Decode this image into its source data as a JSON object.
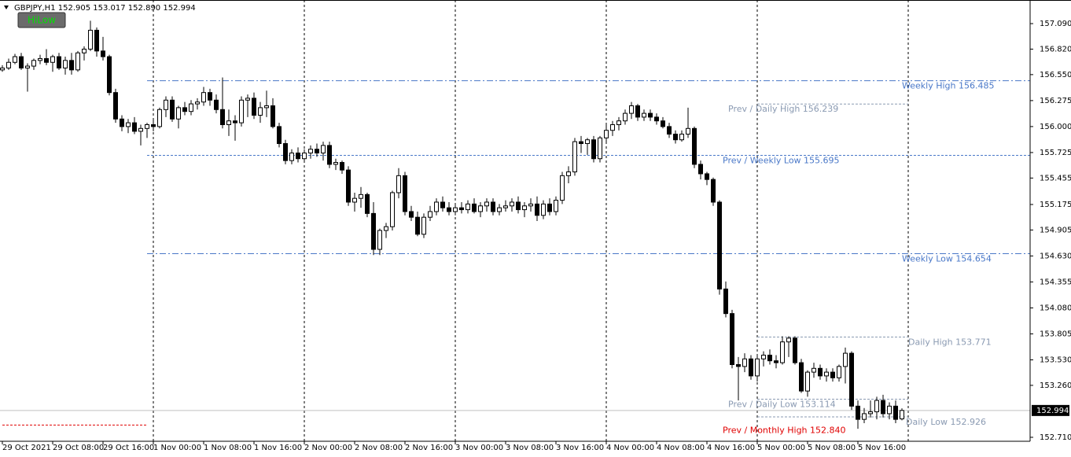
{
  "chart_data": {
    "type": "candlestick",
    "title": "GBPJPY,H1  152.905 153.017 152.890 152.994",
    "button": "HiLow",
    "categories": [
      "29 Oct 2021",
      null,
      null,
      null,
      null,
      null,
      null,
      null,
      "29 Oct 08:00",
      null,
      null,
      null,
      null,
      null,
      null,
      null,
      "29 Oct 16:00",
      null,
      null,
      null,
      null,
      null,
      null,
      null,
      "1 Nov 00:00",
      null,
      null,
      null,
      null,
      null,
      null,
      null,
      "1 Nov 08:00",
      null,
      null,
      null,
      null,
      null,
      null,
      null,
      "1 Nov 16:00",
      null,
      null,
      null,
      null,
      null,
      null,
      null,
      "2 Nov 00:00",
      null,
      null,
      null,
      null,
      null,
      null,
      null,
      "2 Nov 08:00",
      null,
      null,
      null,
      null,
      null,
      null,
      null,
      "2 Nov 16:00",
      null,
      null,
      null,
      null,
      null,
      null,
      null,
      "3 Nov 00:00",
      null,
      null,
      null,
      null,
      null,
      null,
      null,
      "3 Nov 08:00",
      null,
      null,
      null,
      null,
      null,
      null,
      null,
      "3 Nov 16:00",
      null,
      null,
      null,
      null,
      null,
      null,
      null,
      "4 Nov 00:00",
      null,
      null,
      null,
      null,
      null,
      null,
      null,
      "4 Nov 08:00",
      null,
      null,
      null,
      null,
      null,
      null,
      null,
      "4 Nov 16:00",
      null,
      null,
      null,
      null,
      null,
      null,
      null,
      "5 Nov 00:00",
      null,
      null,
      null,
      null,
      null,
      null,
      null,
      "5 Nov 08:00",
      null,
      null,
      null,
      null,
      null,
      null,
      null,
      "5 Nov 16:00",
      null,
      null,
      null,
      null,
      null,
      null,
      null
    ],
    "ohlc": [
      [
        156.6,
        156.65,
        156.58,
        156.62
      ],
      [
        156.62,
        156.72,
        156.6,
        156.68
      ],
      [
        156.68,
        156.77,
        156.66,
        156.74
      ],
      [
        156.74,
        156.78,
        156.6,
        156.62
      ],
      [
        156.62,
        156.67,
        156.37,
        156.64
      ],
      [
        156.64,
        156.72,
        156.6,
        156.7
      ],
      [
        156.7,
        156.76,
        156.66,
        156.72
      ],
      [
        156.72,
        156.82,
        156.65,
        156.68
      ],
      [
        156.68,
        156.76,
        156.58,
        156.74
      ],
      [
        156.74,
        156.78,
        156.6,
        156.62
      ],
      [
        156.62,
        156.74,
        156.55,
        156.7
      ],
      [
        156.7,
        156.78,
        156.55,
        156.6
      ],
      [
        156.6,
        156.8,
        156.58,
        156.78
      ],
      [
        156.78,
        156.85,
        156.7,
        156.82
      ],
      [
        156.82,
        157.12,
        156.8,
        157.02
      ],
      [
        157.02,
        157.05,
        156.74,
        156.8
      ],
      [
        156.8,
        156.95,
        156.7,
        156.74
      ],
      [
        156.74,
        156.76,
        156.33,
        156.36
      ],
      [
        156.36,
        156.4,
        156.04,
        156.08
      ],
      [
        156.08,
        156.12,
        155.95,
        156.0
      ],
      [
        156.0,
        156.08,
        155.93,
        156.04
      ],
      [
        156.04,
        156.1,
        155.92,
        155.95
      ],
      [
        155.95,
        156.02,
        155.8,
        155.98
      ],
      [
        155.98,
        156.04,
        155.88,
        156.02
      ],
      [
        156.02,
        156.08,
        155.95,
        156.0
      ],
      [
        156.0,
        156.2,
        155.98,
        156.18
      ],
      [
        156.18,
        156.32,
        156.1,
        156.28
      ],
      [
        156.28,
        156.32,
        156.05,
        156.08
      ],
      [
        156.08,
        156.22,
        155.98,
        156.2
      ],
      [
        156.2,
        156.26,
        156.12,
        156.16
      ],
      [
        156.16,
        156.28,
        156.12,
        156.24
      ],
      [
        156.24,
        156.3,
        156.18,
        156.26
      ],
      [
        156.26,
        156.42,
        156.22,
        156.36
      ],
      [
        156.36,
        156.4,
        156.22,
        156.28
      ],
      [
        156.28,
        156.34,
        156.14,
        156.18
      ],
      [
        156.18,
        156.52,
        155.98,
        156.02
      ],
      [
        156.02,
        156.18,
        155.9,
        156.06
      ],
      [
        156.06,
        156.12,
        155.85,
        156.04
      ],
      [
        156.04,
        156.32,
        156.0,
        156.28
      ],
      [
        156.28,
        156.34,
        156.1,
        156.3
      ],
      [
        156.3,
        156.36,
        156.08,
        156.12
      ],
      [
        156.12,
        156.26,
        156.04,
        156.2
      ],
      [
        156.2,
        156.38,
        156.1,
        156.22
      ],
      [
        156.22,
        156.3,
        155.98,
        156.0
      ],
      [
        156.0,
        156.04,
        155.78,
        155.82
      ],
      [
        155.82,
        155.86,
        155.6,
        155.64
      ],
      [
        155.64,
        155.76,
        155.6,
        155.72
      ],
      [
        155.72,
        155.78,
        155.62,
        155.66
      ],
      [
        155.66,
        155.76,
        155.62,
        155.72
      ],
      [
        155.72,
        155.8,
        155.66,
        155.76
      ],
      [
        155.76,
        155.82,
        155.68,
        155.72
      ],
      [
        155.72,
        155.84,
        155.64,
        155.8
      ],
      [
        155.8,
        155.84,
        155.56,
        155.6
      ],
      [
        155.6,
        155.66,
        155.54,
        155.62
      ],
      [
        155.62,
        155.64,
        155.5,
        155.54
      ],
      [
        155.54,
        155.58,
        155.16,
        155.2
      ],
      [
        155.2,
        155.3,
        155.1,
        155.24
      ],
      [
        155.24,
        155.36,
        155.14,
        155.28
      ],
      [
        155.28,
        155.3,
        155.04,
        155.08
      ],
      [
        155.08,
        155.2,
        154.64,
        154.7
      ],
      [
        154.7,
        154.92,
        154.64,
        154.9
      ],
      [
        154.9,
        154.98,
        154.82,
        154.94
      ],
      [
        154.94,
        155.32,
        154.9,
        155.3
      ],
      [
        155.3,
        155.56,
        155.24,
        155.48
      ],
      [
        155.48,
        155.52,
        155.06,
        155.1
      ],
      [
        155.1,
        155.16,
        155.0,
        155.04
      ],
      [
        155.04,
        155.1,
        154.84,
        154.86
      ],
      [
        154.86,
        155.08,
        154.82,
        155.04
      ],
      [
        155.04,
        155.16,
        155.0,
        155.1
      ],
      [
        155.1,
        155.24,
        155.06,
        155.2
      ],
      [
        155.2,
        155.26,
        155.1,
        155.14
      ],
      [
        155.14,
        155.2,
        155.06,
        155.1
      ],
      [
        155.1,
        155.18,
        155.06,
        155.14
      ],
      [
        155.14,
        155.2,
        155.08,
        155.12
      ],
      [
        155.12,
        155.22,
        155.08,
        155.18
      ],
      [
        155.18,
        155.24,
        155.08,
        155.1
      ],
      [
        155.1,
        155.2,
        155.04,
        155.16
      ],
      [
        155.16,
        155.24,
        155.1,
        155.2
      ],
      [
        155.2,
        155.24,
        155.06,
        155.1
      ],
      [
        155.1,
        155.18,
        155.06,
        155.14
      ],
      [
        155.14,
        155.22,
        155.1,
        155.16
      ],
      [
        155.16,
        155.24,
        155.1,
        155.2
      ],
      [
        155.2,
        155.26,
        155.08,
        155.12
      ],
      [
        155.12,
        155.2,
        155.04,
        155.16
      ],
      [
        155.16,
        155.24,
        155.1,
        155.18
      ],
      [
        155.18,
        155.26,
        155.0,
        155.06
      ],
      [
        155.06,
        155.22,
        155.02,
        155.18
      ],
      [
        155.18,
        155.24,
        155.06,
        155.1
      ],
      [
        155.1,
        155.26,
        155.06,
        155.22
      ],
      [
        155.22,
        155.52,
        155.18,
        155.48
      ],
      [
        155.48,
        155.58,
        155.4,
        155.52
      ],
      [
        155.52,
        155.88,
        155.48,
        155.84
      ],
      [
        155.84,
        155.9,
        155.72,
        155.82
      ],
      [
        155.82,
        155.88,
        155.7,
        155.86
      ],
      [
        155.86,
        155.9,
        155.62,
        155.66
      ],
      [
        155.66,
        155.9,
        155.62,
        155.88
      ],
      [
        155.88,
        156.02,
        155.84,
        155.96
      ],
      [
        155.96,
        156.06,
        155.9,
        156.02
      ],
      [
        156.02,
        156.1,
        155.96,
        156.06
      ],
      [
        156.06,
        156.18,
        156.02,
        156.14
      ],
      [
        156.14,
        156.26,
        156.08,
        156.22
      ],
      [
        156.22,
        156.24,
        156.06,
        156.1
      ],
      [
        156.1,
        156.18,
        156.06,
        156.14
      ],
      [
        156.14,
        156.18,
        156.06,
        156.1
      ],
      [
        156.1,
        156.14,
        156.02,
        156.06
      ],
      [
        156.06,
        156.1,
        155.98,
        156.0
      ],
      [
        156.0,
        156.04,
        155.88,
        155.92
      ],
      [
        155.92,
        155.96,
        155.82,
        155.86
      ],
      [
        155.86,
        155.96,
        155.84,
        155.92
      ],
      [
        155.92,
        156.2,
        155.88,
        155.98
      ],
      [
        155.98,
        156.0,
        155.56,
        155.6
      ],
      [
        155.6,
        155.64,
        155.44,
        155.5
      ],
      [
        155.5,
        155.52,
        155.38,
        155.44
      ],
      [
        155.44,
        155.46,
        155.16,
        155.2
      ],
      [
        155.2,
        155.22,
        154.22,
        154.28
      ],
      [
        154.28,
        154.36,
        153.98,
        154.02
      ],
      [
        154.02,
        154.06,
        153.44,
        153.48
      ],
      [
        153.48,
        153.56,
        153.1,
        153.46
      ],
      [
        153.46,
        153.6,
        153.4,
        153.54
      ],
      [
        153.54,
        153.58,
        153.32,
        153.36
      ],
      [
        153.36,
        153.58,
        153.3,
        153.54
      ],
      [
        153.54,
        153.62,
        153.46,
        153.58
      ],
      [
        153.58,
        153.64,
        153.48,
        153.52
      ],
      [
        153.52,
        153.58,
        153.44,
        153.5
      ],
      [
        153.5,
        153.78,
        153.48,
        153.72
      ],
      [
        153.72,
        153.78,
        153.56,
        153.76
      ],
      [
        153.76,
        153.78,
        153.48,
        153.5
      ],
      [
        153.5,
        153.54,
        153.18,
        153.2
      ],
      [
        153.2,
        153.42,
        153.14,
        153.4
      ],
      [
        153.4,
        153.5,
        153.34,
        153.44
      ],
      [
        153.44,
        153.48,
        153.32,
        153.36
      ],
      [
        153.36,
        153.44,
        153.3,
        153.4
      ],
      [
        153.4,
        153.44,
        153.3,
        153.34
      ],
      [
        153.34,
        153.48,
        153.3,
        153.46
      ],
      [
        153.46,
        153.66,
        153.28,
        153.6
      ],
      [
        153.6,
        153.62,
        153.0,
        153.04
      ],
      [
        153.04,
        153.1,
        152.8,
        152.9
      ],
      [
        152.9,
        153.02,
        152.86,
        152.96
      ],
      [
        152.96,
        153.1,
        152.92,
        152.98
      ],
      [
        152.98,
        153.14,
        152.9,
        153.1
      ],
      [
        153.1,
        153.16,
        152.92,
        152.96
      ],
      [
        152.96,
        153.08,
        152.9,
        153.04
      ],
      [
        153.04,
        153.1,
        152.86,
        152.9
      ],
      [
        152.905,
        153.017,
        152.89,
        152.994
      ]
    ],
    "ylim": [
      152.668,
      157.34
    ],
    "yticks": [
      {
        "value": 157.09,
        "label": "157.090"
      },
      {
        "value": 156.82,
        "label": "156.820"
      },
      {
        "value": 156.55,
        "label": "156.550"
      },
      {
        "value": 156.275,
        "label": "156.275"
      },
      {
        "value": 156.0,
        "label": "156.000"
      },
      {
        "value": 155.725,
        "label": "155.725"
      },
      {
        "value": 155.455,
        "label": "155.455"
      },
      {
        "value": 155.175,
        "label": "155.175"
      },
      {
        "value": 154.905,
        "label": "154.905"
      },
      {
        "value": 154.63,
        "label": "154.630"
      },
      {
        "value": 154.355,
        "label": "154.355"
      },
      {
        "value": 154.08,
        "label": "154.080"
      },
      {
        "value": 153.805,
        "label": "153.805"
      },
      {
        "value": 153.53,
        "label": "153.530"
      },
      {
        "value": 153.26,
        "label": "153.260"
      },
      {
        "value": 152.71,
        "label": "152.710"
      }
    ],
    "current_price": {
      "value": 152.994,
      "label": "152.994"
    },
    "levels": [
      {
        "text": "Weekly High 156.485",
        "value": 156.485,
        "color": "#4a78c8",
        "style": "dashdot"
      },
      {
        "text": "Prev / Daily High 156.239",
        "value": 156.239,
        "color": "#8a9ab2",
        "style": "dash"
      },
      {
        "text": "Prev / Weekly Low 155.695",
        "value": 155.695,
        "color": "#4a78c8",
        "style": "dash"
      },
      {
        "text": "Weekly Low 154.654",
        "value": 154.654,
        "color": "#4a78c8",
        "style": "dashdot"
      },
      {
        "text": "Daily High 153.771",
        "value": 153.771,
        "color": "#8a9ab2",
        "style": "dash"
      },
      {
        "text": "Prev / Daily Low 153.114",
        "value": 153.114,
        "color": "#8a9ab2",
        "style": "dash"
      },
      {
        "text": "Daily Low 152.926",
        "value": 152.926,
        "color": "#8a9ab2",
        "style": "dash"
      },
      {
        "text": "Prev / Monthly High 152.840",
        "value": 152.84,
        "color": "#e00000",
        "style": "dash"
      }
    ],
    "up_color": "#ffffff",
    "down_color": "#000000"
  }
}
